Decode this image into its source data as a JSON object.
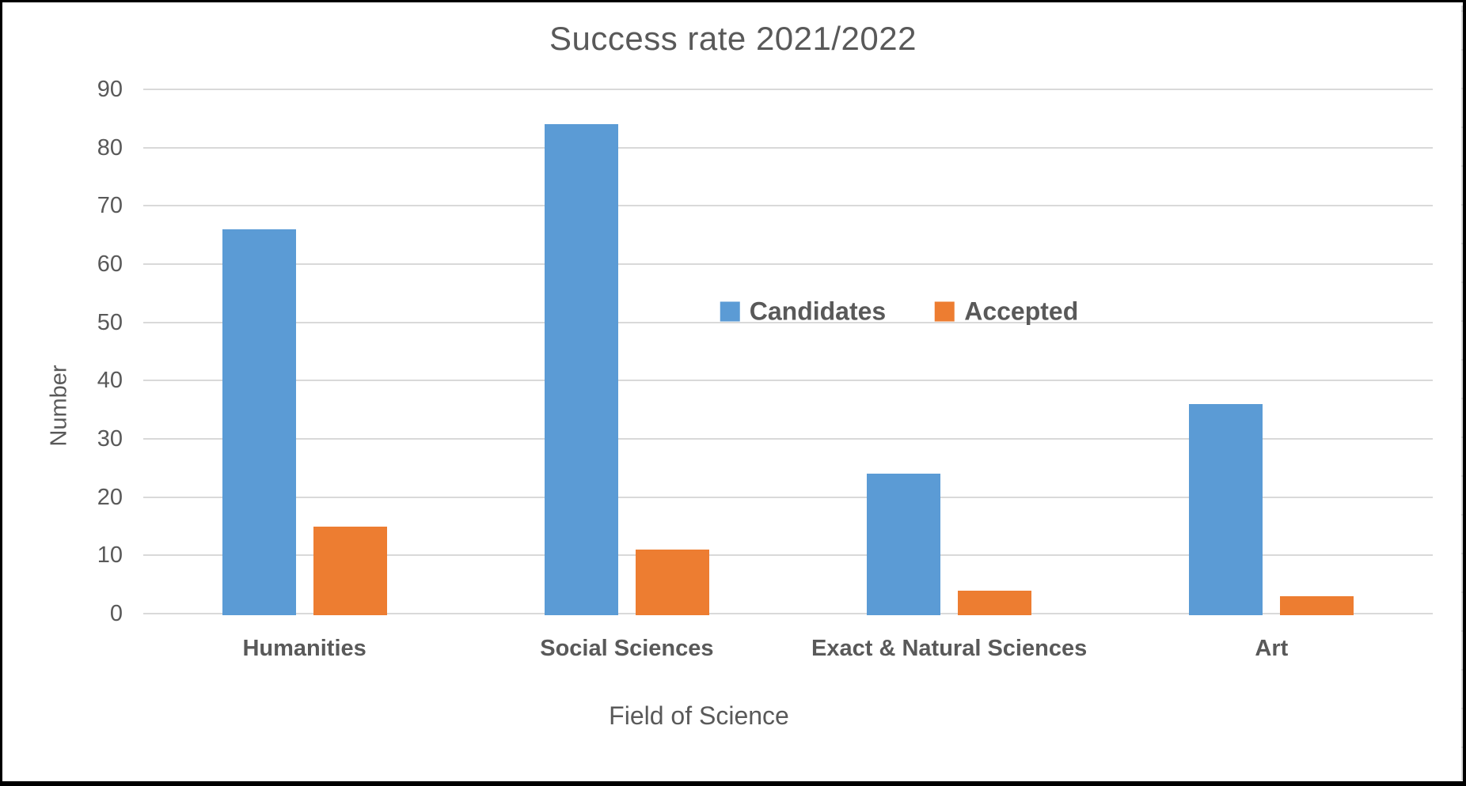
{
  "chart_data": {
    "type": "bar",
    "title": "Success rate 2021/2022",
    "xlabel": "Field of Science",
    "ylabel": "Number",
    "categories": [
      "Humanities",
      "Social Sciences",
      "Exact & Natural Sciences",
      "Art"
    ],
    "series": [
      {
        "name": "Candidates",
        "color": "#5B9BD5",
        "values": [
          66,
          84,
          24,
          36
        ]
      },
      {
        "name": "Accepted",
        "color": "#ED7D31",
        "values": [
          15,
          11,
          4,
          3
        ]
      }
    ],
    "ylim": [
      0,
      90
    ],
    "ytick_interval": 10,
    "ytick_labels": [
      "0",
      "10",
      "20",
      "30",
      "40",
      "50",
      "60",
      "70",
      "80",
      "90"
    ],
    "grid": true,
    "legend_position": "inside-plot-center-right"
  },
  "colors": {
    "candidates_blue": "#5B9BD5",
    "accepted_orange": "#ED7D31",
    "text_gray": "#595959",
    "gridline_gray": "#D9D9D9",
    "frame_border": "#000000",
    "background": "#FFFFFF"
  }
}
